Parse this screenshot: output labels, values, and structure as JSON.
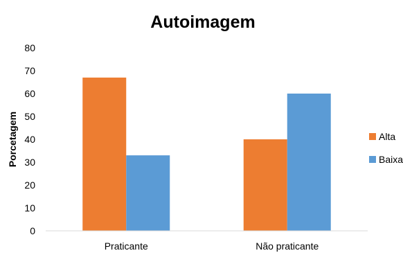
{
  "chart_data": {
    "type": "bar",
    "title": "Autoimagem",
    "ylabel": "Porcetagem",
    "xlabel": "",
    "categories": [
      "Praticante",
      "Não praticante"
    ],
    "series": [
      {
        "name": "Alta",
        "values": [
          67,
          40
        ],
        "color": "#ED7D31"
      },
      {
        "name": "Baixa",
        "values": [
          33,
          60
        ],
        "color": "#5B9BD5"
      }
    ],
    "ylim": [
      0,
      80
    ],
    "yticks": [
      0,
      10,
      20,
      30,
      40,
      50,
      60,
      70,
      80
    ],
    "grid": false,
    "legend_position": "right",
    "axis_color": "#D9D9D9"
  }
}
